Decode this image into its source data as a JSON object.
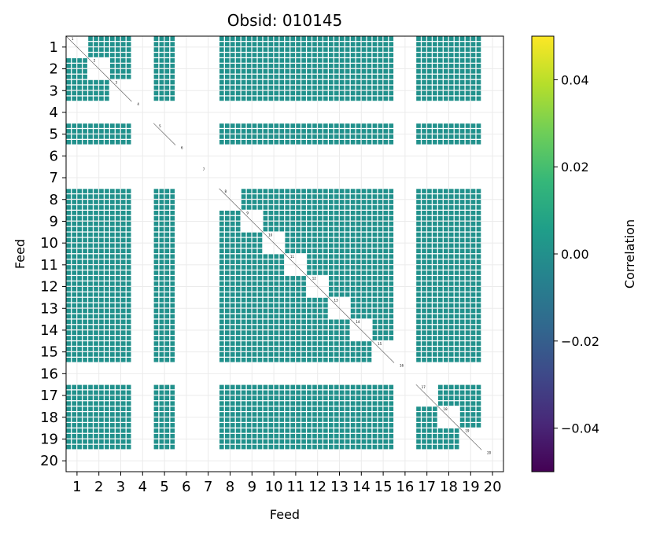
{
  "chart_data": {
    "type": "heatmap",
    "title": "Obsid: 010145",
    "xlabel": "Feed",
    "ylabel": "Feed",
    "x_ticks": [
      "1",
      "2",
      "3",
      "4",
      "5",
      "6",
      "7",
      "8",
      "9",
      "10",
      "11",
      "12",
      "13",
      "14",
      "15",
      "16",
      "17",
      "18",
      "19",
      "20"
    ],
    "y_ticks": [
      "1",
      "2",
      "3",
      "4",
      "5",
      "6",
      "7",
      "8",
      "9",
      "10",
      "11",
      "12",
      "13",
      "14",
      "15",
      "16",
      "17",
      "18",
      "19",
      "20"
    ],
    "xlim": [
      0.5,
      20.5
    ],
    "ylim": [
      20.5,
      0.5
    ],
    "grid": true,
    "feeds": [
      1,
      2,
      3,
      4,
      5,
      6,
      7,
      8,
      9,
      10,
      11,
      12,
      13,
      14,
      15,
      16,
      17,
      18,
      19,
      20
    ],
    "active_feeds": [
      1,
      2,
      3,
      5,
      8,
      9,
      10,
      11,
      12,
      13,
      14,
      15,
      17,
      18,
      19
    ],
    "inactive_feeds": [
      4,
      6,
      7,
      16,
      20
    ],
    "sub_bands_per_feed": 4,
    "off_diagonal_value": 0.0,
    "diagonal_labels": [
      "1",
      "2",
      "3",
      "4",
      "5",
      "6",
      "7",
      "8",
      "9",
      "10",
      "11",
      "12",
      "13",
      "14",
      "15",
      "16",
      "17",
      "18",
      "19",
      "20"
    ],
    "colorbar": {
      "label": "Correlation",
      "colormap": "viridis",
      "vmin": -0.05,
      "vmax": 0.05,
      "ticks": [
        -0.04,
        -0.02,
        0.0,
        0.02,
        0.04
      ],
      "tick_labels": [
        "−0.04",
        "−0.02",
        "0.00",
        "0.02",
        "0.04"
      ]
    },
    "colors": {
      "cell": "#21918c",
      "grid": "#ebebeb",
      "viridis": [
        "#440154",
        "#482878",
        "#3e4989",
        "#31688e",
        "#26828e",
        "#1f9e89",
        "#35b779",
        "#6ece58",
        "#b5de2b",
        "#fde725"
      ]
    }
  }
}
